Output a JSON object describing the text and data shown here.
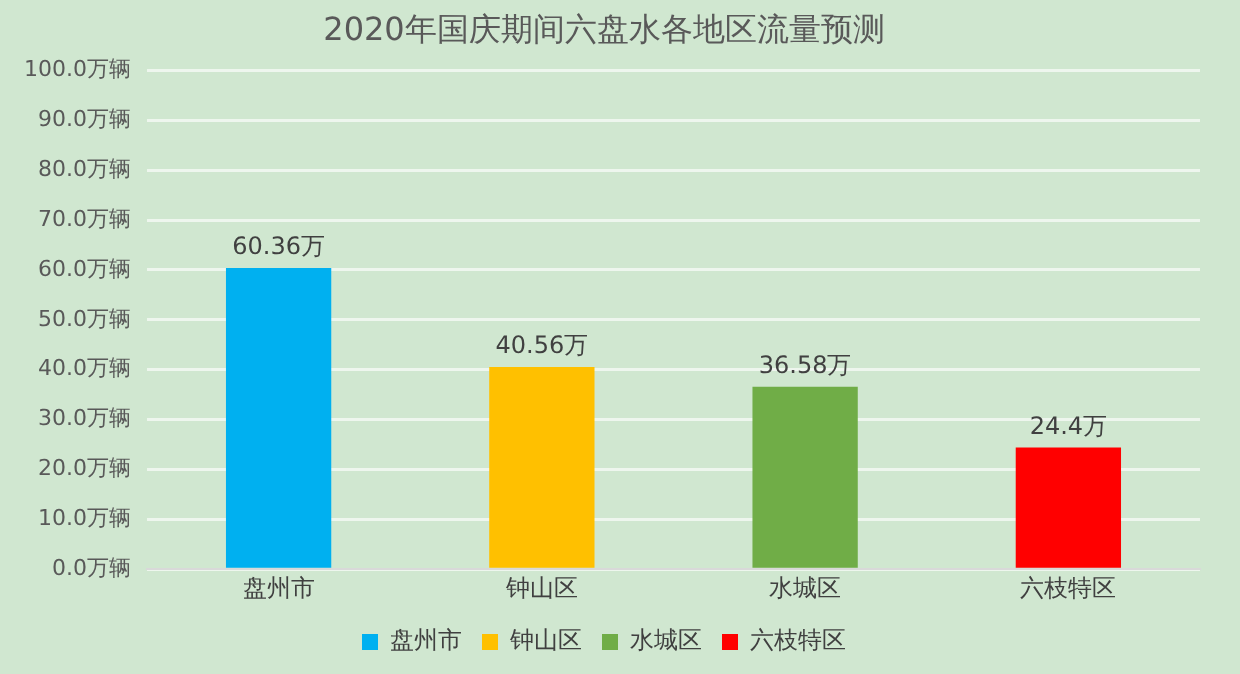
{
  "chart_data": {
    "type": "bar",
    "title": "2020年国庆期间六盘水各地区流量预测",
    "categories": [
      "盘州市",
      "钟山区",
      "水城区",
      "六枝特区"
    ],
    "series": [
      {
        "name": "盘州市",
        "color": "#00b0f0",
        "values": [
          60.36,
          null,
          null,
          null
        ],
        "value_labels": [
          "60.36万",
          null,
          null,
          null
        ]
      },
      {
        "name": "钟山区",
        "color": "#ffc000",
        "values": [
          null,
          40.56,
          null,
          null
        ],
        "value_labels": [
          null,
          "40.56万",
          null,
          null
        ]
      },
      {
        "name": "水城区",
        "color": "#70ad47",
        "values": [
          null,
          null,
          36.58,
          null
        ],
        "value_labels": [
          null,
          null,
          "36.58万",
          null
        ]
      },
      {
        "name": "六枝特区",
        "color": "#ff0000",
        "values": [
          null,
          null,
          null,
          24.4
        ],
        "value_labels": [
          null,
          null,
          null,
          "24.4万"
        ]
      }
    ],
    "ylim": [
      0,
      100
    ],
    "yticks": [
      {
        "value": 0,
        "label": "0.0万辆"
      },
      {
        "value": 10,
        "label": "10.0万辆"
      },
      {
        "value": 20,
        "label": "20.0万辆"
      },
      {
        "value": 30,
        "label": "30.0万辆"
      },
      {
        "value": 40,
        "label": "40.0万辆"
      },
      {
        "value": 50,
        "label": "50.0万辆"
      },
      {
        "value": 60,
        "label": "60.0万辆"
      },
      {
        "value": 70,
        "label": "70.0万辆"
      },
      {
        "value": 80,
        "label": "80.0万辆"
      },
      {
        "value": 90,
        "label": "90.0万辆"
      },
      {
        "value": 100,
        "label": "100.0万辆"
      }
    ],
    "grid": "y",
    "legend": "bottom"
  }
}
